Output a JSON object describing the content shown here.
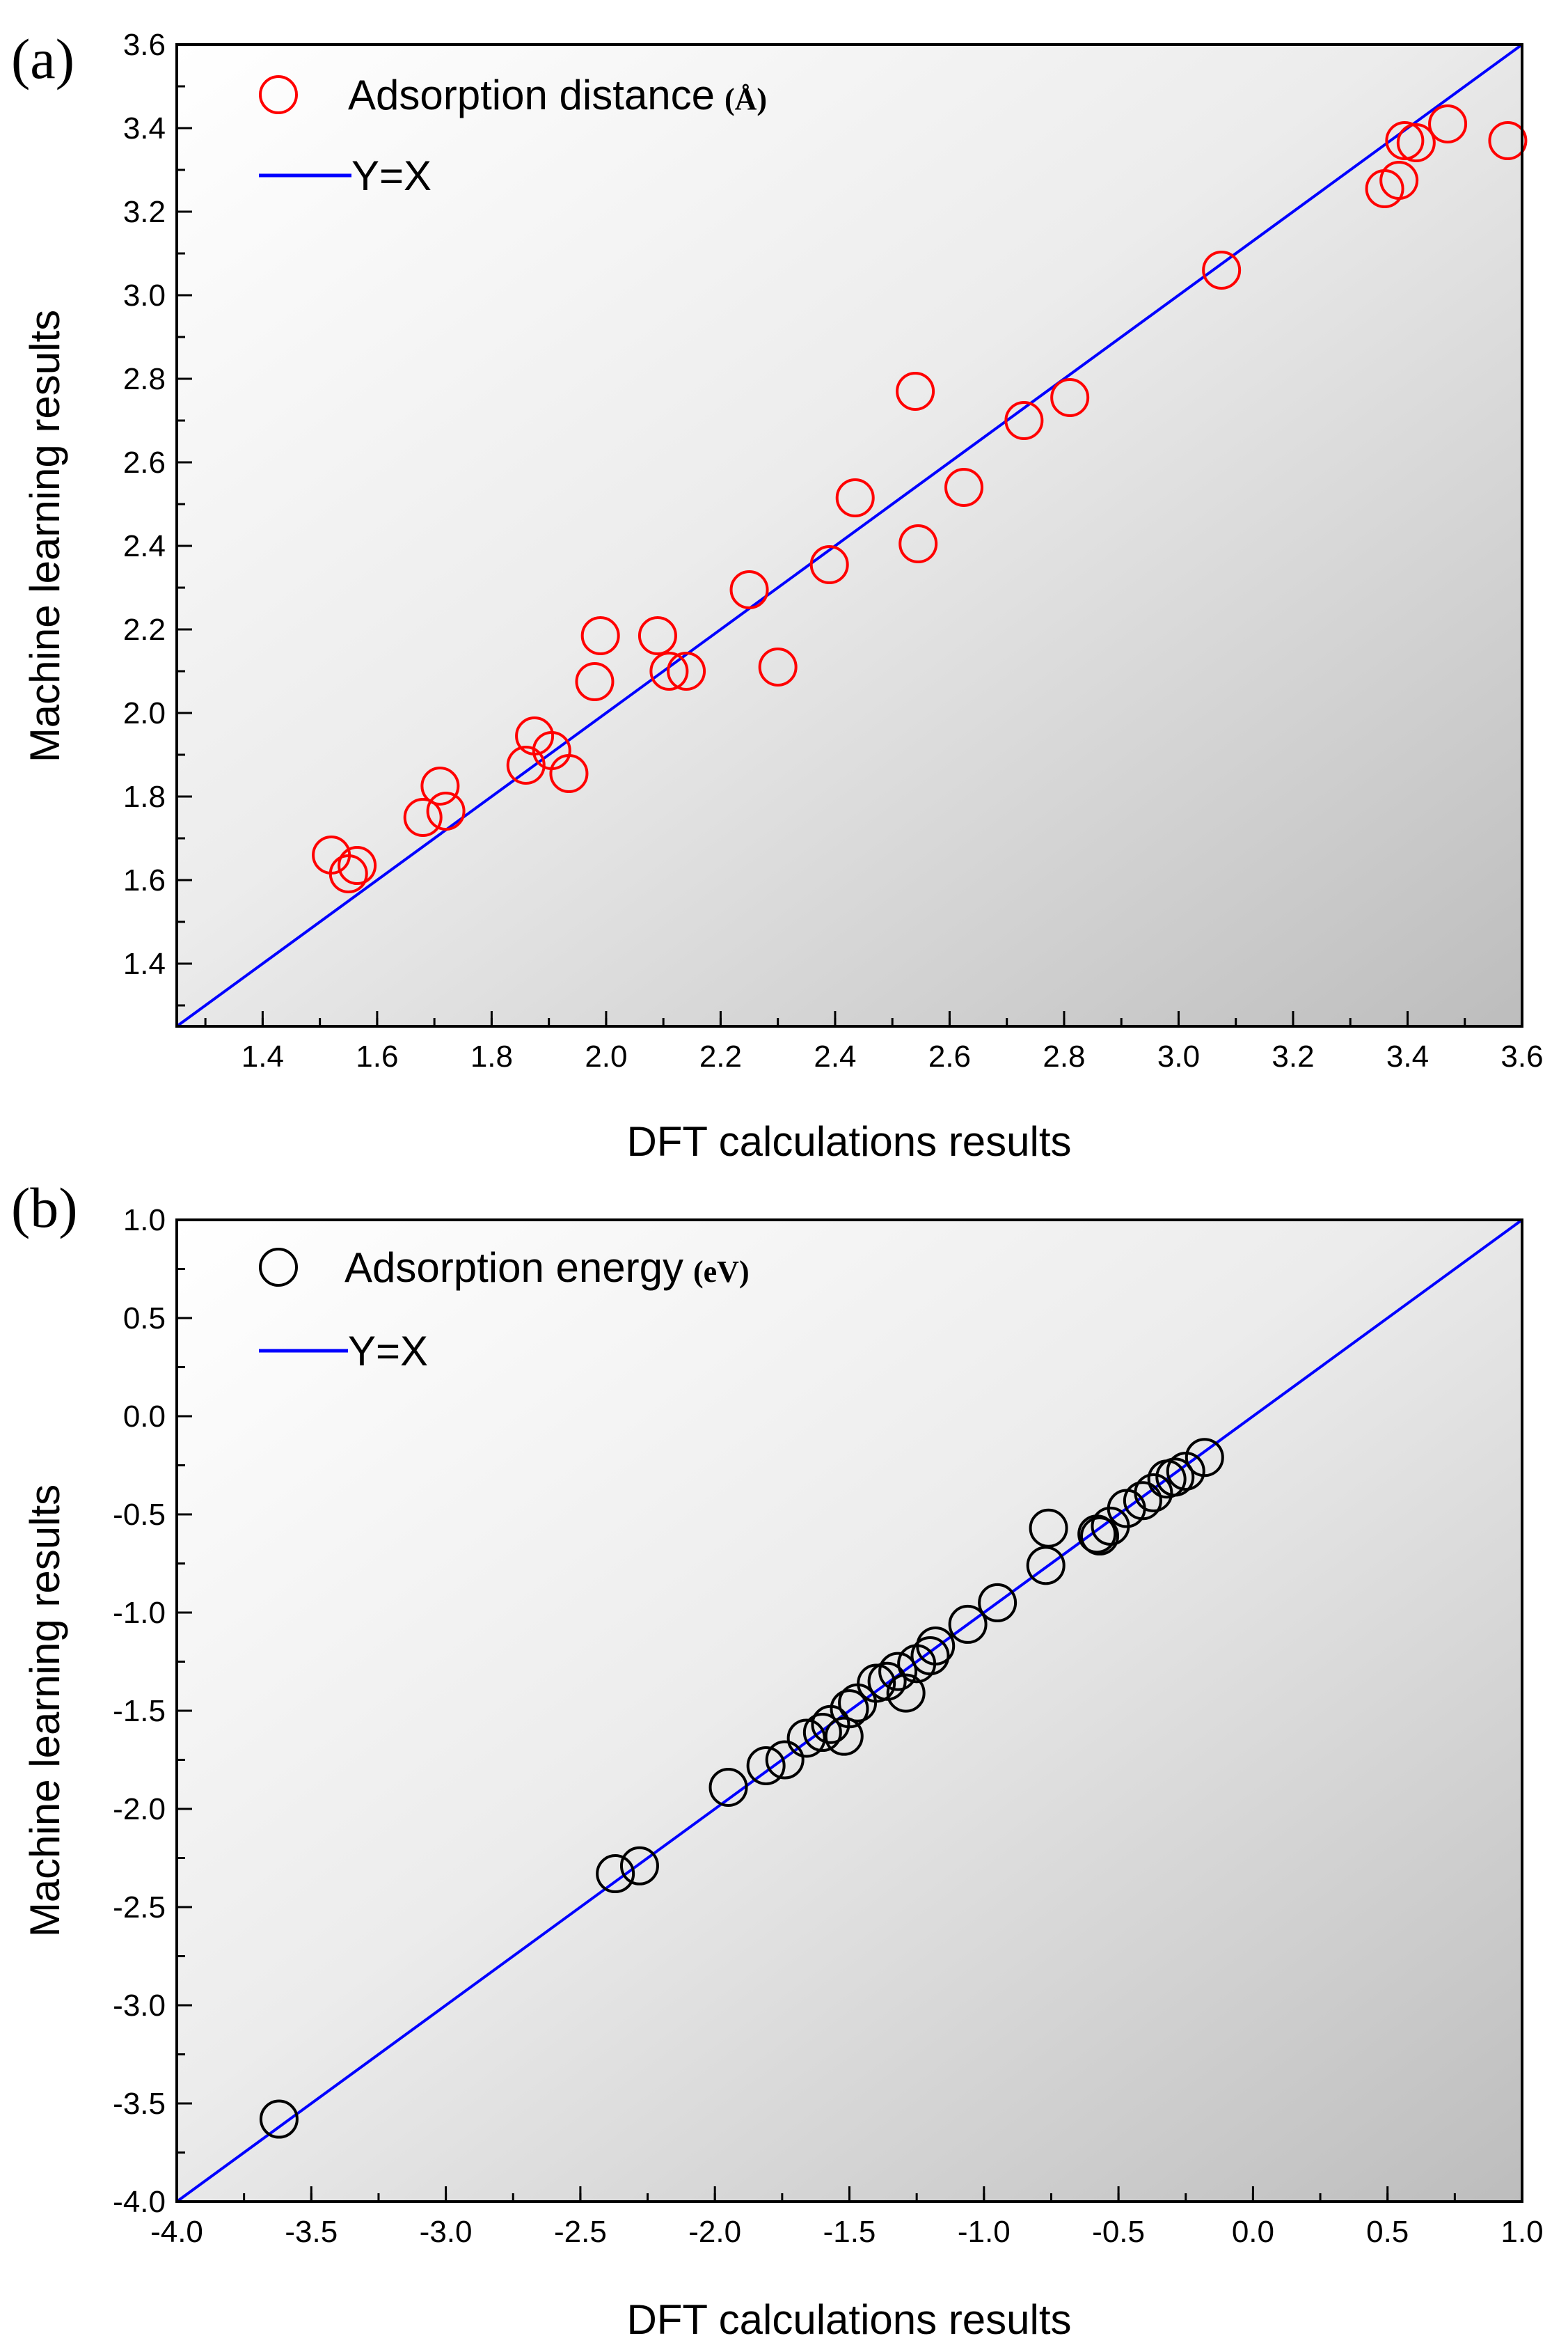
{
  "chart_data": [
    {
      "type": "scatter",
      "panel_label": "(a)",
      "xlabel": "DFT calculations results",
      "ylabel": "Machine learning results",
      "xlim": [
        1.25,
        3.6
      ],
      "ylim": [
        1.25,
        3.6
      ],
      "xticks": [
        "1.4",
        "1.6",
        "1.8",
        "2.0",
        "2.2",
        "2.4",
        "2.6",
        "2.8",
        "3.0",
        "3.2",
        "3.4",
        "3.6"
      ],
      "xtick_values": [
        1.4,
        1.6,
        1.8,
        2.0,
        2.2,
        2.4,
        2.6,
        2.8,
        3.0,
        3.2,
        3.4,
        3.6
      ],
      "yticks": [
        "1.4",
        "1.6",
        "1.8",
        "2.0",
        "2.2",
        "2.4",
        "2.6",
        "2.8",
        "3.0",
        "3.2",
        "3.4",
        "3.6"
      ],
      "ytick_values": [
        1.4,
        1.6,
        1.8,
        2.0,
        2.2,
        2.4,
        2.6,
        2.8,
        3.0,
        3.2,
        3.4,
        3.6
      ],
      "legend_position": "top-left",
      "series": [
        {
          "name": "Adsorption distance",
          "unit": "(Å)",
          "kind": "marker",
          "color": "#ff0000",
          "x": [
            1.52,
            1.55,
            1.565,
            1.68,
            1.71,
            1.72,
            1.86,
            1.875,
            1.905,
            1.935,
            1.98,
            1.99,
            2.09,
            2.11,
            2.14,
            2.25,
            2.3,
            2.39,
            2.435,
            2.54,
            2.545,
            2.625,
            2.73,
            2.81,
            3.075,
            3.36,
            3.385,
            3.395,
            3.415,
            3.47,
            3.575
          ],
          "y": [
            1.66,
            1.615,
            1.635,
            1.75,
            1.825,
            1.765,
            1.875,
            1.945,
            1.91,
            1.855,
            2.075,
            2.185,
            2.185,
            2.1,
            2.1,
            2.295,
            2.11,
            2.355,
            2.515,
            2.77,
            2.405,
            2.54,
            2.7,
            2.755,
            3.06,
            3.255,
            3.275,
            3.37,
            3.365,
            3.41,
            3.37
          ]
        },
        {
          "name": "Y=X",
          "kind": "line",
          "color": "#0000ff",
          "x": [
            1.25,
            3.6
          ],
          "y": [
            1.25,
            3.6
          ]
        }
      ]
    },
    {
      "type": "scatter",
      "panel_label": "(b)",
      "xlabel": "DFT calculations results",
      "ylabel": "Machine learning results",
      "xlim": [
        -4.0,
        1.0
      ],
      "ylim": [
        -4.0,
        1.0
      ],
      "xticks": [
        "-4.0",
        "-3.5",
        "-3.0",
        "-2.5",
        "-2.0",
        "-1.5",
        "-1.0",
        "-0.5",
        "0.0",
        "0.5",
        "1.0"
      ],
      "xtick_values": [
        -4.0,
        -3.5,
        -3.0,
        -2.5,
        -2.0,
        -1.5,
        -1.0,
        -0.5,
        0.0,
        0.5,
        1.0
      ],
      "yticks": [
        "-4.0",
        "-3.5",
        "-3.0",
        "-2.5",
        "-2.0",
        "-1.5",
        "-1.0",
        "-0.5",
        "0.0",
        "0.5",
        "1.0"
      ],
      "ytick_values": [
        -4.0,
        -3.5,
        -3.0,
        -2.5,
        -2.0,
        -1.5,
        -1.0,
        -0.5,
        0.0,
        0.5,
        1.0
      ],
      "legend_position": "top-left",
      "series": [
        {
          "name": "Adsorption energy",
          "unit": "(eV)",
          "kind": "marker",
          "color": "#000000",
          "x": [
            -3.62,
            -2.37,
            -2.28,
            -1.95,
            -1.81,
            -1.74,
            -1.66,
            -1.6,
            -1.57,
            -1.52,
            -1.5,
            -1.47,
            -1.4,
            -1.36,
            -1.32,
            -1.29,
            -1.25,
            -1.2,
            -1.18,
            -1.06,
            -0.95,
            -0.77,
            -0.76,
            -0.58,
            -0.57,
            -0.53,
            -0.47,
            -0.41,
            -0.37,
            -0.32,
            -0.29,
            -0.25,
            -0.18
          ],
          "y": [
            -3.58,
            -2.33,
            -2.29,
            -1.89,
            -1.78,
            -1.75,
            -1.64,
            -1.61,
            -1.57,
            -1.63,
            -1.49,
            -1.46,
            -1.36,
            -1.35,
            -1.3,
            -1.41,
            -1.26,
            -1.22,
            -1.17,
            -1.06,
            -0.95,
            -0.76,
            -0.57,
            -0.6,
            -0.61,
            -0.56,
            -0.47,
            -0.43,
            -0.39,
            -0.32,
            -0.31,
            -0.28,
            -0.21
          ]
        },
        {
          "name": "Y=X",
          "kind": "line",
          "color": "#0000ff",
          "x": [
            -4.0,
            1.0
          ],
          "y": [
            -4.0,
            1.0
          ]
        }
      ]
    }
  ]
}
